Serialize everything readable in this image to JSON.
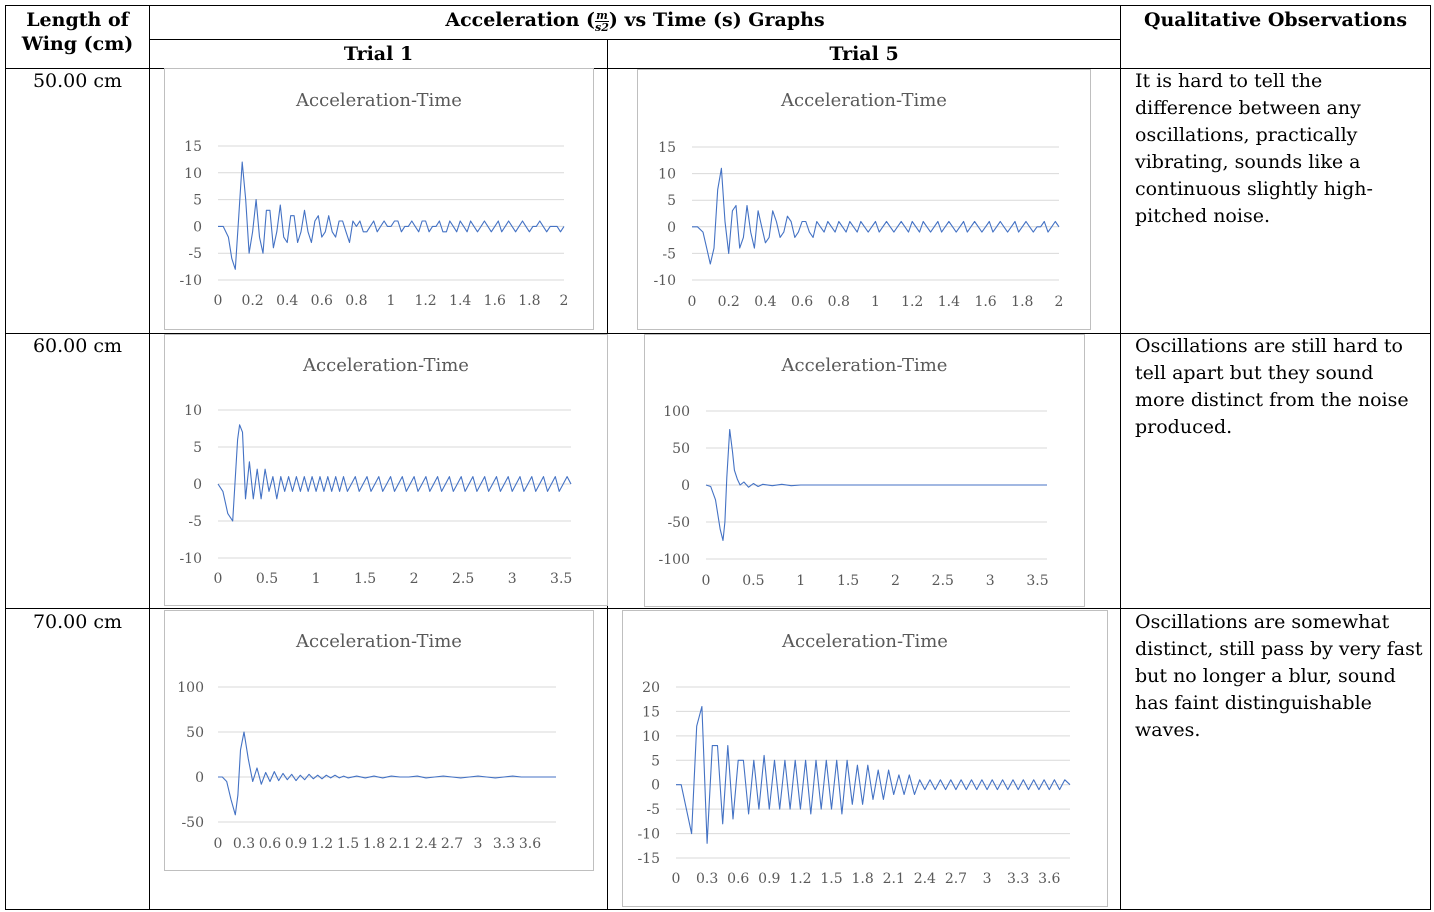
{
  "header": {
    "col_length": "Length of Wing (cm)",
    "col_graphs_prefix": "Acceleration (",
    "col_graphs_unit_num": "m",
    "col_graphs_unit_den": "s2",
    "col_graphs_suffix": ") vs Time (s) Graphs",
    "col_obs": "Qualitative Observations",
    "trial1": "Trial 1",
    "trial5": "Trial 5"
  },
  "rows": [
    {
      "length": "50.00 cm",
      "observation": "It is hard to tell the difference between any oscillations, practically vibrating, sounds like a continuous slightly high-pitched noise."
    },
    {
      "length": "60.00 cm",
      "observation": "Oscillations are still hard to tell apart but they sound more distinct from the noise produced."
    },
    {
      "length": "70.00 cm",
      "observation": "Oscillations are somewhat distinct, still pass by very fast but no longer a blur, sound has faint distinguishable waves."
    }
  ],
  "colors": {
    "series": "#4472c4",
    "grid": "#d9d9d9",
    "chart_text": "#595959",
    "chart_border": "#bfbfbf"
  },
  "chart_data": [
    {
      "id": "r1t1",
      "type": "line",
      "title": "Acceleration-Time",
      "xlim": [
        0,
        2
      ],
      "ylim": [
        -10,
        15
      ],
      "xticks": [
        0,
        0.2,
        0.4,
        0.6,
        0.8,
        1,
        1.2,
        1.4,
        1.6,
        1.8,
        2
      ],
      "yticks": [
        -10,
        -5,
        0,
        5,
        10,
        15
      ],
      "x": [
        0,
        0.03,
        0.06,
        0.08,
        0.1,
        0.12,
        0.14,
        0.16,
        0.18,
        0.2,
        0.22,
        0.24,
        0.26,
        0.28,
        0.3,
        0.32,
        0.34,
        0.36,
        0.38,
        0.4,
        0.42,
        0.44,
        0.46,
        0.48,
        0.5,
        0.52,
        0.54,
        0.56,
        0.58,
        0.6,
        0.62,
        0.64,
        0.66,
        0.68,
        0.7,
        0.72,
        0.74,
        0.76,
        0.78,
        0.8,
        0.82,
        0.84,
        0.86,
        0.88,
        0.9,
        0.92,
        0.94,
        0.96,
        0.98,
        1,
        1.02,
        1.04,
        1.06,
        1.08,
        1.1,
        1.12,
        1.14,
        1.16,
        1.18,
        1.2,
        1.22,
        1.24,
        1.26,
        1.28,
        1.3,
        1.32,
        1.34,
        1.36,
        1.38,
        1.4,
        1.42,
        1.44,
        1.46,
        1.48,
        1.5,
        1.52,
        1.54,
        1.56,
        1.58,
        1.6,
        1.62,
        1.64,
        1.66,
        1.68,
        1.7,
        1.72,
        1.74,
        1.76,
        1.78,
        1.8,
        1.82,
        1.84,
        1.86,
        1.88,
        1.9,
        1.92,
        1.94,
        1.96,
        1.98,
        2
      ],
      "y": [
        0,
        0,
        -2,
        -6,
        -8,
        2,
        12,
        5,
        -5,
        -1,
        5,
        -2,
        -5,
        3,
        3,
        -4,
        -1,
        4,
        -2,
        -3,
        2,
        2,
        -3,
        -1,
        3,
        -1,
        -3,
        1,
        2,
        -2,
        -1,
        2,
        -1,
        -2,
        1,
        1,
        -1,
        -3,
        1,
        0,
        1,
        -1,
        -1,
        0,
        1,
        -1,
        0,
        1,
        0,
        0,
        1,
        1,
        -1,
        0,
        0,
        1,
        0,
        -1,
        1,
        1,
        -1,
        0,
        0,
        1,
        -1,
        -1,
        1,
        0,
        -1,
        1,
        0,
        -1,
        1,
        0,
        -1,
        0,
        1,
        0,
        -1,
        0,
        1,
        -1,
        0,
        1,
        0,
        -1,
        0,
        1,
        0,
        -1,
        0,
        0,
        1,
        0,
        -1,
        0,
        0,
        0,
        -1,
        0
      ]
    },
    {
      "id": "r1t5",
      "type": "line",
      "title": "Acceleration-Time",
      "xlim": [
        0,
        2
      ],
      "ylim": [
        -10,
        15
      ],
      "xticks": [
        0,
        0.2,
        0.4,
        0.6,
        0.8,
        1,
        1.2,
        1.4,
        1.6,
        1.8,
        2
      ],
      "yticks": [
        -10,
        -5,
        0,
        5,
        10,
        15
      ],
      "x": [
        0,
        0.03,
        0.06,
        0.08,
        0.1,
        0.12,
        0.14,
        0.16,
        0.18,
        0.2,
        0.22,
        0.24,
        0.26,
        0.28,
        0.3,
        0.32,
        0.34,
        0.36,
        0.38,
        0.4,
        0.42,
        0.44,
        0.46,
        0.48,
        0.5,
        0.52,
        0.54,
        0.56,
        0.58,
        0.6,
        0.62,
        0.64,
        0.66,
        0.68,
        0.7,
        0.72,
        0.74,
        0.76,
        0.78,
        0.8,
        0.82,
        0.84,
        0.86,
        0.88,
        0.9,
        0.92,
        0.94,
        0.96,
        0.98,
        1,
        1.02,
        1.04,
        1.06,
        1.08,
        1.1,
        1.12,
        1.14,
        1.16,
        1.18,
        1.2,
        1.22,
        1.24,
        1.26,
        1.28,
        1.3,
        1.32,
        1.34,
        1.36,
        1.38,
        1.4,
        1.42,
        1.44,
        1.46,
        1.48,
        1.5,
        1.52,
        1.54,
        1.56,
        1.58,
        1.6,
        1.62,
        1.64,
        1.66,
        1.68,
        1.7,
        1.72,
        1.74,
        1.76,
        1.78,
        1.8,
        1.82,
        1.84,
        1.86,
        1.88,
        1.9,
        1.92,
        1.94,
        1.96,
        1.98,
        2
      ],
      "y": [
        0,
        0,
        -1,
        -4,
        -7,
        -4,
        7,
        11,
        1,
        -5,
        3,
        4,
        -4,
        -2,
        4,
        -1,
        -4,
        3,
        0,
        -3,
        -2,
        3,
        1,
        -2,
        -1,
        2,
        1,
        -2,
        -1,
        1,
        1,
        -1,
        -2,
        1,
        0,
        -1,
        1,
        0,
        -1,
        1,
        0,
        -1,
        1,
        0,
        -1,
        1,
        0,
        -1,
        0,
        1,
        -1,
        0,
        1,
        0,
        -1,
        0,
        1,
        0,
        -1,
        1,
        0,
        -1,
        1,
        0,
        -1,
        0,
        1,
        -1,
        0,
        1,
        0,
        -1,
        0,
        1,
        -1,
        0,
        1,
        0,
        -1,
        0,
        1,
        -1,
        0,
        1,
        0,
        -1,
        0,
        1,
        -1,
        0,
        1,
        0,
        -1,
        0,
        0,
        1,
        -1,
        0,
        1,
        0
      ]
    },
    {
      "id": "r2t1",
      "type": "line",
      "title": "Acceleration-Time",
      "xlim": [
        0,
        3.6
      ],
      "ylim": [
        -10,
        10
      ],
      "xticks": [
        0,
        0.5,
        1,
        1.5,
        2,
        2.5,
        3,
        3.5
      ],
      "yticks": [
        -10,
        -5,
        0,
        5,
        10
      ],
      "x": [
        0,
        0.05,
        0.1,
        0.15,
        0.2,
        0.22,
        0.25,
        0.28,
        0.32,
        0.36,
        0.4,
        0.44,
        0.48,
        0.52,
        0.56,
        0.6,
        0.64,
        0.68,
        0.72,
        0.76,
        0.8,
        0.84,
        0.88,
        0.92,
        0.96,
        1,
        1.04,
        1.08,
        1.12,
        1.16,
        1.2,
        1.24,
        1.28,
        1.32,
        1.36,
        1.4,
        1.44,
        1.48,
        1.52,
        1.56,
        1.6,
        1.64,
        1.68,
        1.72,
        1.76,
        1.8,
        1.84,
        1.88,
        1.92,
        1.96,
        2,
        2.04,
        2.08,
        2.12,
        2.16,
        2.2,
        2.24,
        2.28,
        2.32,
        2.36,
        2.4,
        2.44,
        2.48,
        2.52,
        2.56,
        2.6,
        2.64,
        2.68,
        2.72,
        2.76,
        2.8,
        2.84,
        2.88,
        2.92,
        2.96,
        3,
        3.04,
        3.08,
        3.12,
        3.16,
        3.2,
        3.24,
        3.28,
        3.32,
        3.36,
        3.4,
        3.44,
        3.48,
        3.52,
        3.56,
        3.6
      ],
      "y": [
        0,
        -1,
        -4,
        -5,
        6,
        8,
        7,
        -2,
        3,
        -2,
        2,
        -2,
        2,
        -1,
        1,
        -2,
        1,
        -1,
        1,
        -1,
        1,
        -1,
        1,
        -1,
        1,
        -1,
        1,
        -1,
        1,
        -1,
        1,
        -1,
        1,
        -1,
        0,
        1,
        -1,
        0,
        1,
        -1,
        0,
        1,
        -1,
        0,
        1,
        -1,
        0,
        1,
        -1,
        0,
        1,
        -1,
        0,
        1,
        -1,
        0,
        1,
        -1,
        0,
        1,
        -1,
        0,
        1,
        -1,
        0,
        1,
        -1,
        0,
        1,
        -1,
        0,
        1,
        -1,
        0,
        1,
        -1,
        0,
        1,
        -1,
        0,
        1,
        -1,
        0,
        1,
        -1,
        0,
        1,
        -1,
        0,
        1,
        0
      ]
    },
    {
      "id": "r2t5",
      "type": "line",
      "title": "Acceleration-Time",
      "xlim": [
        0,
        3.6
      ],
      "ylim": [
        -100,
        100
      ],
      "xticks": [
        0,
        0.5,
        1,
        1.5,
        2,
        2.5,
        3,
        3.5
      ],
      "yticks": [
        -100,
        -50,
        0,
        50,
        100
      ],
      "x": [
        0,
        0.05,
        0.1,
        0.15,
        0.18,
        0.2,
        0.22,
        0.25,
        0.28,
        0.3,
        0.33,
        0.36,
        0.4,
        0.45,
        0.5,
        0.55,
        0.6,
        0.7,
        0.8,
        0.9,
        1,
        1.2,
        1.4,
        1.6,
        1.8,
        2,
        2.2,
        2.4,
        2.6,
        2.8,
        3,
        3.2,
        3.4,
        3.6
      ],
      "y": [
        0,
        -2,
        -20,
        -60,
        -75,
        -50,
        10,
        75,
        45,
        20,
        8,
        0,
        4,
        -3,
        2,
        -2,
        1,
        -1,
        1,
        -1,
        0,
        0,
        0,
        0,
        0,
        0,
        0,
        0,
        0,
        0,
        0,
        0,
        0,
        0
      ]
    },
    {
      "id": "r3t1",
      "type": "line",
      "title": "Acceleration-Time",
      "xlim": [
        0,
        3.9
      ],
      "ylim": [
        -50,
        100
      ],
      "xticks": [
        0,
        0.3,
        0.6,
        0.9,
        1.2,
        1.5,
        1.8,
        2.1,
        2.4,
        2.7,
        3,
        3.3,
        3.6
      ],
      "yticks": [
        -50,
        0,
        50,
        100
      ],
      "x": [
        0,
        0.05,
        0.1,
        0.15,
        0.2,
        0.23,
        0.26,
        0.3,
        0.35,
        0.4,
        0.45,
        0.5,
        0.55,
        0.6,
        0.65,
        0.7,
        0.75,
        0.8,
        0.85,
        0.9,
        0.95,
        1,
        1.05,
        1.1,
        1.15,
        1.2,
        1.25,
        1.3,
        1.35,
        1.4,
        1.45,
        1.5,
        1.6,
        1.7,
        1.8,
        1.9,
        2,
        2.1,
        2.2,
        2.3,
        2.4,
        2.5,
        2.6,
        2.7,
        2.8,
        2.9,
        3,
        3.1,
        3.2,
        3.3,
        3.4,
        3.5,
        3.6,
        3.7,
        3.8,
        3.9
      ],
      "y": [
        0,
        0,
        -5,
        -25,
        -42,
        -20,
        30,
        50,
        20,
        -5,
        10,
        -8,
        5,
        -5,
        6,
        -4,
        4,
        -3,
        3,
        -4,
        2,
        -3,
        3,
        -2,
        2,
        -2,
        2,
        -1,
        2,
        -1,
        1,
        -1,
        1,
        -1,
        1,
        -1,
        1,
        0,
        0,
        1,
        -1,
        0,
        1,
        0,
        -1,
        0,
        1,
        0,
        -1,
        0,
        1,
        0,
        0,
        0,
        0,
        0
      ]
    },
    {
      "id": "r3t5",
      "type": "line",
      "title": "Acceleration-Time",
      "xlim": [
        0,
        3.8
      ],
      "ylim": [
        -15,
        20
      ],
      "xticks": [
        0,
        0.3,
        0.6,
        0.9,
        1.2,
        1.5,
        1.8,
        2.1,
        2.4,
        2.7,
        3,
        3.3,
        3.6
      ],
      "yticks": [
        -15,
        -10,
        -5,
        0,
        5,
        10,
        15,
        20
      ],
      "x": [
        0,
        0.05,
        0.1,
        0.15,
        0.2,
        0.25,
        0.3,
        0.35,
        0.4,
        0.45,
        0.5,
        0.55,
        0.6,
        0.65,
        0.7,
        0.75,
        0.8,
        0.85,
        0.9,
        0.95,
        1,
        1.05,
        1.1,
        1.15,
        1.2,
        1.25,
        1.3,
        1.35,
        1.4,
        1.45,
        1.5,
        1.55,
        1.6,
        1.65,
        1.7,
        1.75,
        1.8,
        1.85,
        1.9,
        1.95,
        2,
        2.05,
        2.1,
        2.15,
        2.2,
        2.25,
        2.3,
        2.35,
        2.4,
        2.45,
        2.5,
        2.55,
        2.6,
        2.65,
        2.7,
        2.75,
        2.8,
        2.85,
        2.9,
        2.95,
        3,
        3.05,
        3.1,
        3.15,
        3.2,
        3.25,
        3.3,
        3.35,
        3.4,
        3.45,
        3.5,
        3.55,
        3.6,
        3.65,
        3.7,
        3.75,
        3.8
      ],
      "y": [
        0,
        0,
        -5,
        -10,
        12,
        16,
        -12,
        8,
        8,
        -8,
        8,
        -7,
        5,
        5,
        -6,
        5,
        -5,
        6,
        -5,
        5,
        -5,
        5,
        -5,
        5,
        -5,
        5,
        -6,
        5,
        -5,
        5,
        -5,
        5,
        -6,
        5,
        -4,
        4,
        -4,
        4,
        -3,
        3,
        -3,
        3,
        -2,
        2,
        -2,
        2,
        -2,
        1,
        -1,
        1,
        -1,
        1,
        -1,
        1,
        -1,
        1,
        -1,
        1,
        -1,
        1,
        -1,
        1,
        -1,
        1,
        -1,
        1,
        -1,
        1,
        -1,
        1,
        -1,
        1,
        -1,
        1,
        -1,
        1,
        0
      ]
    }
  ]
}
